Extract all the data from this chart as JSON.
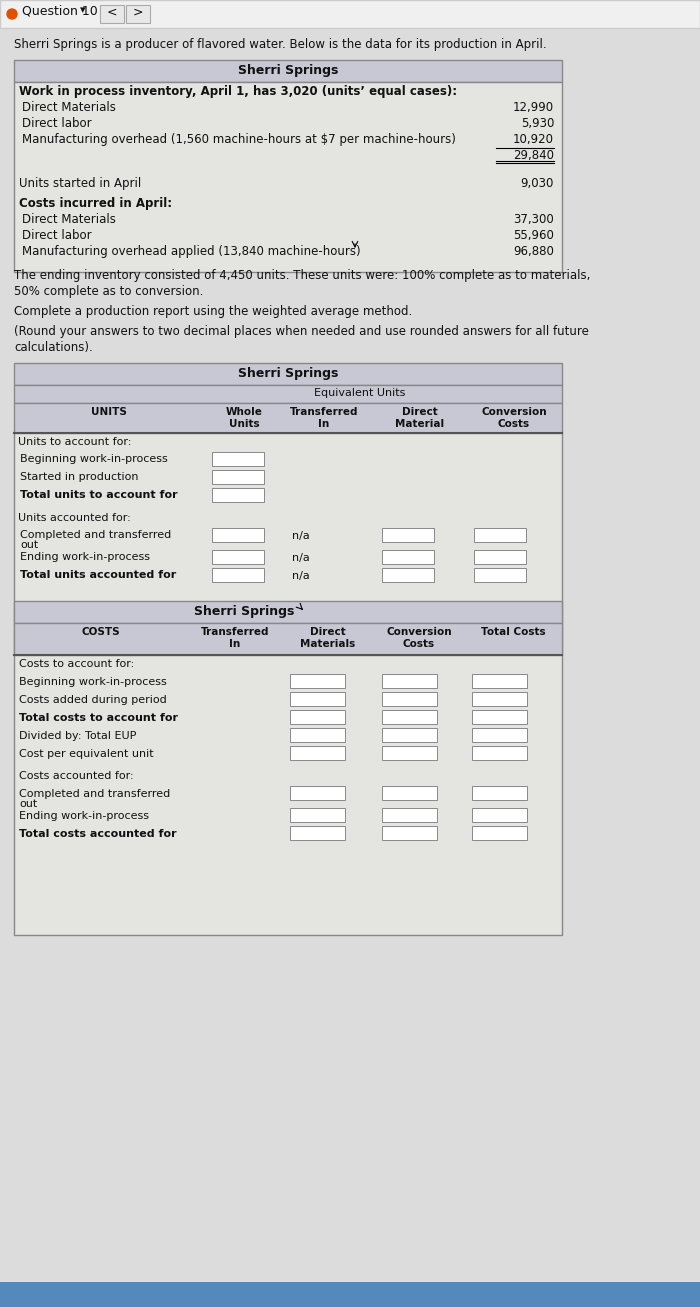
{
  "bg_color": "#dcdcdc",
  "nav_bg": "#f5f5f5",
  "header_bg": "#c8c8d4",
  "table_body_bg": "#e4e4e0",
  "white": "#ffffff",
  "intro_text": "Sherri Springs is a producer of flavored water. Below is the data for its production in April.",
  "table1_title": "Sherri Springs",
  "wip_header": "Work in process inventory, April 1, has 3,020 (units’ equal cases):",
  "wip_rows": [
    [
      "Direct Materials",
      "12,990"
    ],
    [
      "Direct labor",
      "5,930"
    ],
    [
      "Manufacturing overhead (1,560 machine-hours at $7 per machine-hours)",
      "10,920"
    ]
  ],
  "wip_total": "29,840",
  "units_started_label": "Units started in April",
  "units_started_value": "9,030",
  "costs_header": "Costs incurred in April:",
  "costs_rows": [
    [
      "Direct Materials",
      "37,300"
    ],
    [
      "Direct labor",
      "55,960"
    ],
    [
      "Manufacturing overhead applied (13,840 machine-hours)",
      "96,880"
    ]
  ],
  "ending_inv_text": "The ending inventory consisted of 4,450 units. These units were: 100% complete as to materials,\n50% complete as to conversion.",
  "complete_text": "Complete a production report using the weighted average method.",
  "round_text": "(Round your answers to two decimal places when needed and use rounded answers for all future\ncalculations).",
  "units_table_title": "Sherri Springs",
  "equiv_units_label": "Equivalent Units",
  "units_col_headers": [
    "UNITS",
    "Whole\nUnits",
    "Transferred\nIn",
    "Direct\nMaterial",
    "Conversion\nCosts"
  ],
  "units_rows_top": [
    [
      "Beginning work-in-process",
      false
    ],
    [
      "Started in production",
      false
    ],
    [
      "Total units to account for",
      true
    ]
  ],
  "units_rows_bottom": [
    [
      "Completed and transferred\nout",
      false
    ],
    [
      "Ending work-in-process",
      false
    ],
    [
      "Total units accounted for",
      true
    ]
  ],
  "costs_table_title": "Sherri Springs",
  "costs_col_headers": [
    "COSTS",
    "Transferred\nIn",
    "Direct\nMaterials",
    "Conversion\nCosts",
    "Total Costs"
  ],
  "costs_rows_top": [
    [
      "Costs to account for:",
      false,
      false
    ],
    [
      "Beginning work-in-process",
      false,
      true
    ],
    [
      "Costs added during period",
      false,
      true
    ],
    [
      "Total costs to account for",
      true,
      true
    ],
    [
      "Divided by: Total EUP",
      false,
      true
    ],
    [
      "Cost per equivalent unit",
      false,
      true
    ]
  ],
  "costs_rows_bottom": [
    [
      "Costs accounted for:",
      false,
      false
    ],
    [
      "Completed and transferred\nout",
      false,
      true
    ],
    [
      "Ending work-in-process",
      false,
      true
    ],
    [
      "Total costs accounted for",
      true,
      true
    ]
  ]
}
